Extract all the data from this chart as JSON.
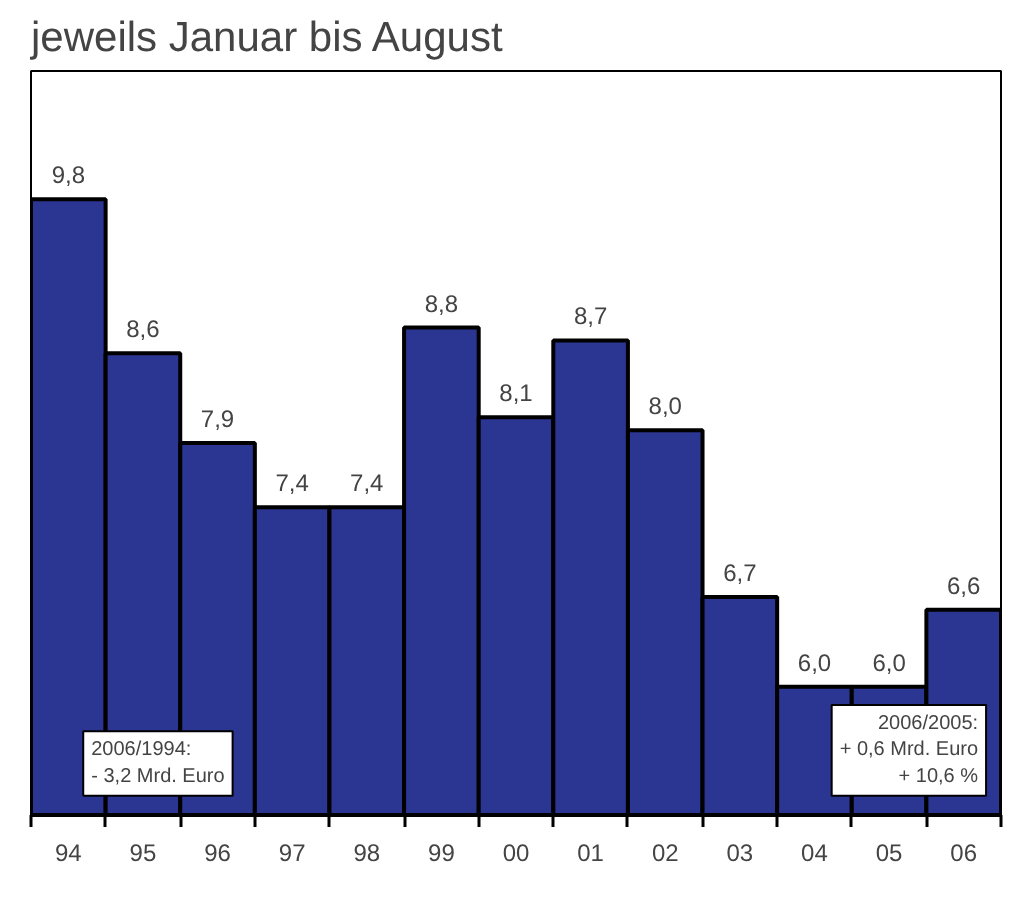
{
  "chart_data": {
    "type": "bar",
    "title": "jeweils Januar bis August",
    "categories": [
      "94",
      "95",
      "96",
      "97",
      "98",
      "99",
      "00",
      "01",
      "02",
      "03",
      "04",
      "05",
      "06"
    ],
    "values": [
      9.8,
      8.6,
      7.9,
      7.4,
      7.4,
      8.8,
      8.1,
      8.7,
      8.0,
      6.7,
      6.0,
      6.0,
      6.6
    ],
    "value_labels": [
      "9,8",
      "8,6",
      "7,9",
      "7,4",
      "7,4",
      "8,8",
      "8,1",
      "8,7",
      "8,0",
      "6,7",
      "6,0",
      "6,0",
      "6,6"
    ],
    "color": "#2b3592",
    "ylim": [
      5,
      10.8
    ],
    "annotations": [
      "2006/1994:\n- 3,2 Mrd. Euro",
      "2006/2005:\n+ 0,6 Mrd. Euro\n+ 10,6 %"
    ],
    "grid": false
  }
}
